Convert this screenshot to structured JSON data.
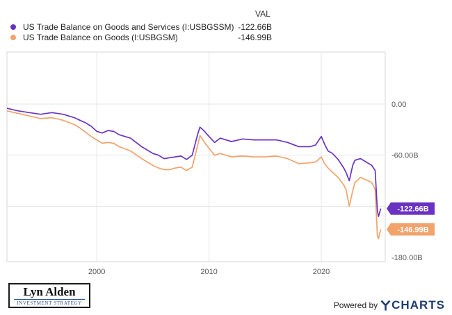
{
  "legend": {
    "header": "VAL",
    "items": [
      {
        "name": "US Trade Balance on Goods and Services (I:USBGSSM)",
        "value": "-122.66B",
        "color": "#6a32c2"
      },
      {
        "name": "US Trade Balance on Goods (I:USBGSM)",
        "value": "-146.99B",
        "color": "#f2a36b"
      }
    ]
  },
  "logo": {
    "name": "Lyn Alden",
    "subtitle": "INVESTMENT STRATEGY"
  },
  "footer": {
    "powered_by": "Powered by",
    "brand": "CHARTS",
    "brand_icon": "ycharts-y-icon"
  },
  "chart_data": {
    "type": "line",
    "x_range": [
      1992.0,
      2025.7
    ],
    "ylim": [
      -180,
      10
    ],
    "x_ticks": [
      2000,
      2010,
      2020
    ],
    "x_tick_labels": [
      "2000",
      "2010",
      "2020"
    ],
    "y_ticks": [
      0,
      -60,
      -120,
      -180
    ],
    "y_tick_labels": [
      "0.00",
      "-60.00B",
      "-120.00B",
      "-180.00B"
    ],
    "grid": true,
    "legend_position": "top-left",
    "end_labels": [
      "-122.66B",
      "-146.99B"
    ],
    "series": [
      {
        "name": "US Trade Balance on Goods and Services (I:USBGSSM)",
        "color": "#6a32c2",
        "x": [
          1992.0,
          1993.0,
          1994.0,
          1995.0,
          1996.0,
          1997.0,
          1998.0,
          1998.5,
          1999.0,
          1999.5,
          2000.0,
          2000.5,
          2001.0,
          2001.5,
          2002.0,
          2003.0,
          2004.0,
          2005.0,
          2005.5,
          2006.0,
          2006.5,
          2007.0,
          2007.5,
          2008.0,
          2008.5,
          2009.0,
          2009.2,
          2009.6,
          2010.0,
          2010.5,
          2011.0,
          2012.0,
          2013.0,
          2014.0,
          2015.0,
          2016.0,
          2017.0,
          2018.0,
          2019.0,
          2019.5,
          2020.0,
          2020.3,
          2020.6,
          2021.0,
          2021.5,
          2022.0,
          2022.2,
          2022.5,
          2022.8,
          2023.0,
          2023.5,
          2024.0,
          2024.5,
          2024.8,
          2025.0,
          2025.1,
          2025.3
        ],
        "y": [
          -5,
          -8,
          -10,
          -12,
          -10,
          -12,
          -16,
          -19,
          -22,
          -26,
          -32,
          -34,
          -31,
          -32,
          -36,
          -40,
          -50,
          -58,
          -60,
          -64,
          -63,
          -62,
          -61,
          -65,
          -60,
          -35,
          -27,
          -32,
          -38,
          -45,
          -40,
          -44,
          -41,
          -42,
          -42,
          -42,
          -45,
          -50,
          -50,
          -48,
          -38,
          -47,
          -55,
          -58,
          -65,
          -75,
          -80,
          -90,
          -72,
          -66,
          -64,
          -68,
          -72,
          -78,
          -125,
          -132,
          -122.66
        ]
      },
      {
        "name": "US Trade Balance on Goods (I:USBGSM)",
        "color": "#f2a36b",
        "x": [
          1992.0,
          1993.0,
          1994.0,
          1995.0,
          1996.0,
          1997.0,
          1998.0,
          1998.5,
          1999.0,
          1999.5,
          2000.0,
          2000.5,
          2001.0,
          2001.5,
          2002.0,
          2003.0,
          2004.0,
          2005.0,
          2005.5,
          2006.0,
          2006.5,
          2007.0,
          2007.5,
          2008.0,
          2008.5,
          2009.0,
          2009.2,
          2009.6,
          2010.0,
          2010.5,
          2011.0,
          2012.0,
          2013.0,
          2014.0,
          2015.0,
          2016.0,
          2017.0,
          2018.0,
          2019.0,
          2019.5,
          2020.0,
          2020.3,
          2020.6,
          2021.0,
          2021.5,
          2022.0,
          2022.2,
          2022.5,
          2022.8,
          2023.0,
          2023.5,
          2024.0,
          2024.5,
          2024.8,
          2025.0,
          2025.1,
          2025.3
        ],
        "y": [
          -8,
          -11,
          -14,
          -17,
          -16,
          -19,
          -24,
          -28,
          -33,
          -38,
          -42,
          -46,
          -45,
          -46,
          -50,
          -55,
          -64,
          -72,
          -75,
          -77,
          -77,
          -75,
          -74,
          -78,
          -74,
          -48,
          -37,
          -45,
          -52,
          -60,
          -58,
          -62,
          -61,
          -62,
          -62,
          -61,
          -64,
          -70,
          -69,
          -68,
          -62,
          -70,
          -75,
          -80,
          -86,
          -95,
          -100,
          -120,
          -102,
          -92,
          -86,
          -89,
          -92,
          -100,
          -155,
          -158,
          -146.99
        ]
      }
    ]
  }
}
